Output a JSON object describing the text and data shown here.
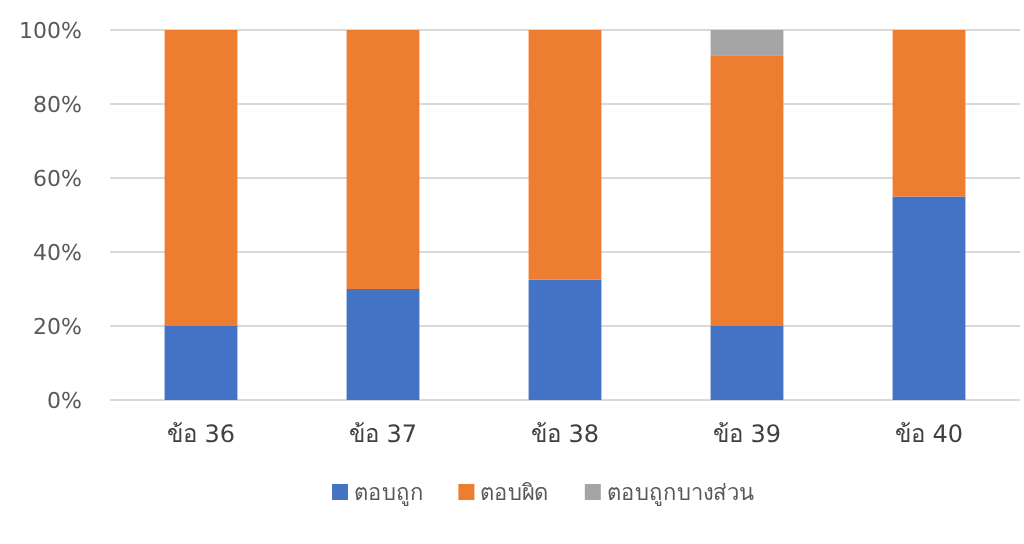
{
  "chart_data": {
    "type": "bar",
    "stacked": true,
    "categories": [
      "ข้อ 36",
      "ข้อ 37",
      "ข้อ 38",
      "ข้อ 39",
      "ข้อ 40"
    ],
    "series": [
      {
        "name": "ตอบถูก",
        "color": "#4472c4",
        "values": [
          20,
          30,
          32.5,
          20,
          55
        ]
      },
      {
        "name": "ตอบผิด",
        "color": "#ed7d31",
        "values": [
          80,
          70,
          67.5,
          73,
          45
        ]
      },
      {
        "name": "ตอบถูกบางส่วน",
        "color": "#a5a5a5",
        "values": [
          0,
          0,
          0,
          7,
          0
        ]
      }
    ],
    "ylim": [
      0,
      100
    ],
    "yticks": [
      {
        "value": 0,
        "label": "0%"
      },
      {
        "value": 20,
        "label": "20%"
      },
      {
        "value": 40,
        "label": "40%"
      },
      {
        "value": 60,
        "label": "60%"
      },
      {
        "value": 80,
        "label": "80%"
      },
      {
        "value": 100,
        "label": "100%"
      }
    ],
    "grid": "y",
    "legend": "bottom"
  }
}
